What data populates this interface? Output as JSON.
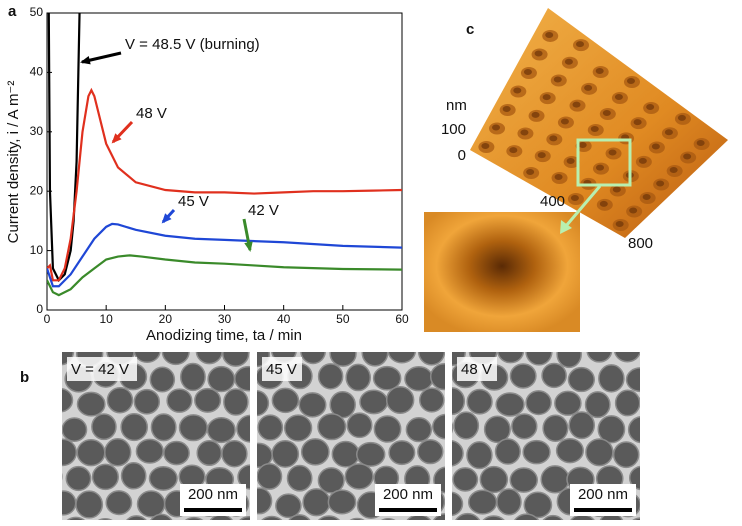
{
  "chart_data": {
    "type": "line",
    "xlabel": "Anodizing time, ta / min",
    "ylabel": "Current density, i / A m⁻²",
    "xlim": [
      0,
      60
    ],
    "ylim": [
      0,
      50
    ],
    "xticks": [
      0,
      10,
      20,
      30,
      40,
      50,
      60
    ],
    "yticks": [
      0,
      10,
      20,
      30,
      40,
      50
    ],
    "series": [
      {
        "name": "V = 48.5 V (burning)",
        "color": "#000000",
        "x": [
          0.3,
          0.5,
          1,
          2,
          3,
          4,
          4.5,
          5,
          5.3,
          5.5
        ],
        "values": [
          50,
          20,
          7,
          5,
          6,
          10,
          15,
          25,
          40,
          50
        ]
      },
      {
        "name": "48 V",
        "color": "#e0301e",
        "x": [
          0,
          0.5,
          1,
          2,
          3,
          4,
          5,
          6,
          7,
          7.5,
          8,
          9,
          10,
          12,
          15,
          20,
          25,
          30,
          35,
          40,
          45,
          50,
          55,
          60
        ],
        "values": [
          7,
          7.5,
          5,
          5,
          7,
          12,
          20,
          30,
          36,
          37,
          36,
          32,
          28,
          24,
          21.5,
          20.2,
          19.8,
          19.8,
          19.6,
          19.8,
          20,
          20,
          20.1,
          20.2
        ]
      },
      {
        "name": "45 V",
        "color": "#1f47d6",
        "x": [
          0,
          1,
          2,
          4,
          6,
          8,
          10,
          11,
          12,
          15,
          20,
          25,
          30,
          40,
          50,
          60
        ],
        "values": [
          7,
          4,
          4,
          6,
          9,
          12,
          14,
          14.5,
          14.4,
          13.5,
          12.5,
          12,
          11.8,
          11.4,
          10.8,
          10.5
        ]
      },
      {
        "name": "42 V",
        "color": "#3a8a2a",
        "x": [
          0,
          1,
          2,
          4,
          6,
          8,
          10,
          12,
          14,
          16,
          20,
          25,
          30,
          35,
          40,
          50,
          60
        ],
        "values": [
          5,
          3,
          2.5,
          3.5,
          5.5,
          7,
          8.5,
          9,
          9.2,
          9,
          8.5,
          8,
          7.8,
          7.5,
          7.2,
          6.9,
          6.8
        ]
      }
    ]
  },
  "panel_labels": [
    "a",
    "b",
    "c"
  ],
  "sem_images": [
    {
      "label": "V = 42 V",
      "scale_bar": "200 nm"
    },
    {
      "label": "45 V",
      "scale_bar": "200 nm"
    },
    {
      "label": "48 V",
      "scale_bar": "200 nm"
    }
  ],
  "afm": {
    "z_unit": "nm",
    "z_ticks": [
      "100",
      "0"
    ],
    "xy_ticks": [
      "400",
      "800"
    ]
  }
}
